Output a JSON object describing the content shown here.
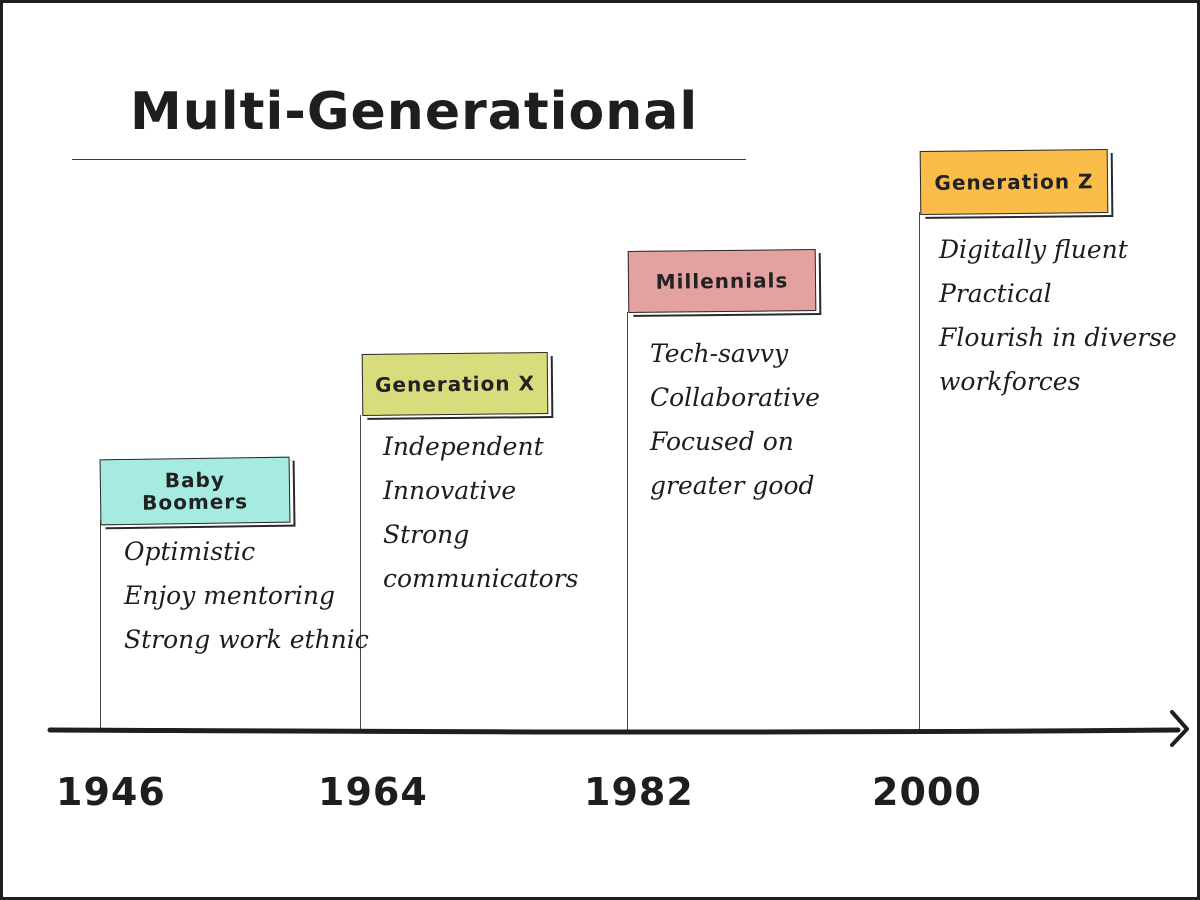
{
  "title": "Multi-Generational",
  "generations": [
    {
      "name": "Baby Boomers",
      "name_lines": [
        "Baby",
        "Boomers"
      ],
      "start_year": "1946",
      "color": "#a6ebe2",
      "traits": [
        "Optimistic",
        "Enjoy mentoring",
        "Strong work ethnic"
      ]
    },
    {
      "name": "Generation X",
      "start_year": "1964",
      "color": "#d7dd7c",
      "traits": [
        "Independent",
        "Innovative",
        "Strong",
        "communicators"
      ]
    },
    {
      "name": "Millennials",
      "start_year": "1982",
      "color": "#e3a1a0",
      "traits": [
        "Tech-savvy",
        "Collaborative",
        "Focused on",
        "greater good"
      ]
    },
    {
      "name": "Generation Z",
      "start_year": "2000",
      "color": "#fbbd4a",
      "traits": [
        "Digitally fluent",
        "Practical",
        "Flourish in diverse",
        "workforces"
      ]
    }
  ]
}
